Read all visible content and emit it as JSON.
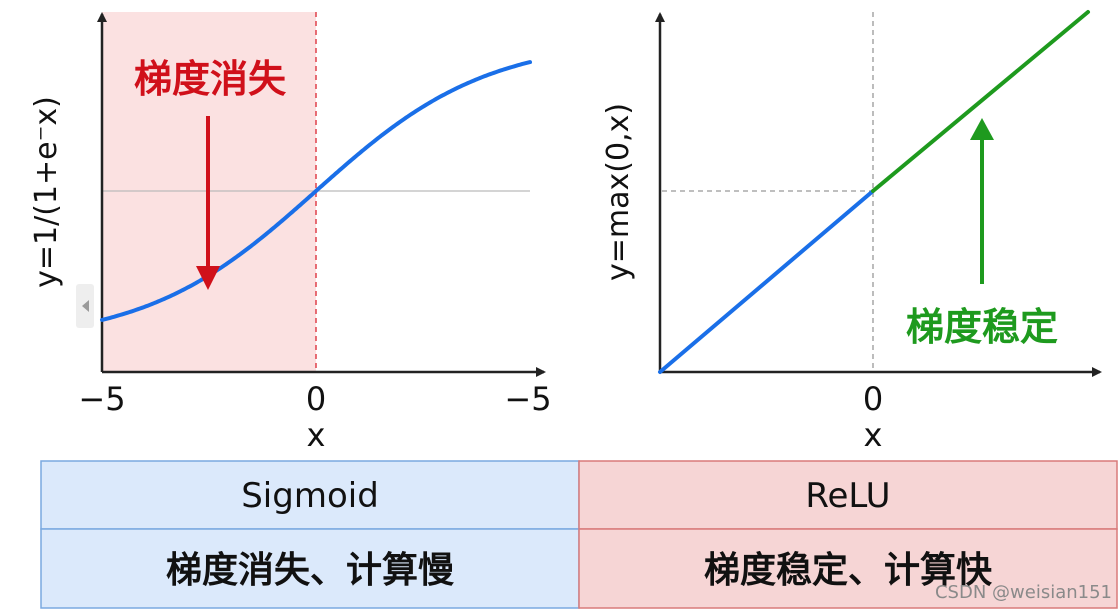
{
  "sigmoid": {
    "ylabel": "y=1/(1+e⁻x)",
    "xlabel": "x",
    "x_ticks": [
      "−5",
      "0",
      "−5"
    ],
    "annotation": "梯度消失",
    "colors": {
      "curve": "#1a6fe8",
      "shade": "#fbe1e1",
      "annotation": "#d0101a",
      "dashed": "#e0404a"
    }
  },
  "relu": {
    "ylabel": "y=max(0,x)",
    "xlabel": "x",
    "x_tick": "0",
    "annotation": "梯度稳定",
    "colors": {
      "negative_segment": "#1a6fe8",
      "positive_segment": "#1e9a1e",
      "annotation": "#1e9a1e"
    }
  },
  "table": {
    "headers": [
      "Sigmoid",
      "ReLU"
    ],
    "rows": [
      [
        "梯度消失、计算慢",
        "梯度稳定、计算快"
      ]
    ],
    "colors": {
      "left_fill": "#dbe9fb",
      "left_border": "#7aa9e0",
      "right_fill": "#f6d5d5",
      "right_border": "#d87a7a"
    }
  },
  "watermark": "CSDN @weisian151"
}
